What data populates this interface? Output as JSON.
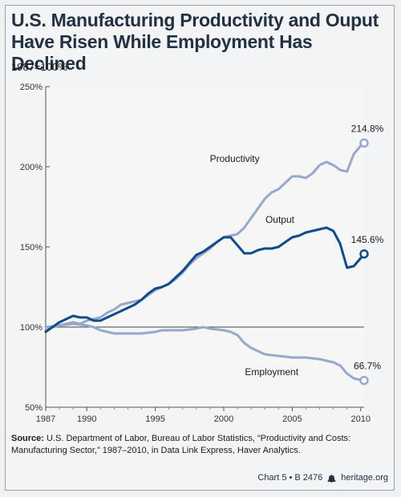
{
  "title_line1": "U.S. Manufacturing Productivity and Ouput",
  "title_line2": "Have Risen While Employment Has Declined",
  "subtitle": "1987=100%",
  "source_label": "Source:",
  "source_text": "U.S. Department of Labor, Bureau of Labor Statistics, “Productivity and Costs: Manufacturing Sector,” 1987–2010, in Data Link Express, Haver Analytics.",
  "footer_chart": "Chart 5 • B 2476",
  "footer_site": "heritage.org",
  "colors": {
    "productivity": "#96a9cd",
    "output": "#0f4c8c",
    "employment": "#96a9cd",
    "baseline": "#444444"
  },
  "chart_data": {
    "type": "line",
    "xlim": [
      1987,
      2010.25
    ],
    "ylim": [
      50,
      250
    ],
    "x_ticks": [
      1987,
      1990,
      1995,
      2000,
      2005,
      2010
    ],
    "y_ticks": [
      {
        "value": 50,
        "label": "50%"
      },
      {
        "value": 100,
        "label": "100%"
      },
      {
        "value": 150,
        "label": "150%"
      },
      {
        "value": 200,
        "label": "200%"
      },
      {
        "value": 250,
        "label": "250%"
      }
    ],
    "baseline": 100,
    "series": [
      {
        "name": "Productivity",
        "end_label": "214.8%",
        "points": [
          [
            1987,
            98
          ],
          [
            1987.5,
            100
          ],
          [
            1988,
            101
          ],
          [
            1988.5,
            102
          ],
          [
            1989,
            103
          ],
          [
            1989.5,
            102
          ],
          [
            1990,
            104
          ],
          [
            1990.5,
            105
          ],
          [
            1991,
            106
          ],
          [
            1991.5,
            109
          ],
          [
            1992,
            111
          ],
          [
            1992.5,
            114
          ],
          [
            1993,
            115
          ],
          [
            1993.5,
            116
          ],
          [
            1994,
            117
          ],
          [
            1994.5,
            120
          ],
          [
            1995,
            123
          ],
          [
            1995.5,
            125
          ],
          [
            1996,
            127
          ],
          [
            1996.5,
            130
          ],
          [
            1997,
            134
          ],
          [
            1997.5,
            139
          ],
          [
            1998,
            143
          ],
          [
            1998.5,
            146
          ],
          [
            1999,
            149
          ],
          [
            1999.5,
            153
          ],
          [
            2000,
            156
          ],
          [
            2000.5,
            157
          ],
          [
            2001,
            158
          ],
          [
            2001.5,
            162
          ],
          [
            2002,
            168
          ],
          [
            2002.5,
            174
          ],
          [
            2003,
            180
          ],
          [
            2003.5,
            184
          ],
          [
            2004,
            186
          ],
          [
            2004.5,
            190
          ],
          [
            2005,
            194
          ],
          [
            2005.5,
            194
          ],
          [
            2006,
            193
          ],
          [
            2006.5,
            196
          ],
          [
            2007,
            201
          ],
          [
            2007.5,
            203
          ],
          [
            2008,
            201
          ],
          [
            2008.5,
            198
          ],
          [
            2009,
            197
          ],
          [
            2009.5,
            208
          ],
          [
            2010,
            213
          ],
          [
            2010.25,
            214.8
          ]
        ]
      },
      {
        "name": "Output",
        "end_label": "145.6%",
        "points": [
          [
            1987,
            97
          ],
          [
            1987.5,
            100
          ],
          [
            1988,
            103
          ],
          [
            1988.5,
            105
          ],
          [
            1989,
            107
          ],
          [
            1989.5,
            106
          ],
          [
            1990,
            106
          ],
          [
            1990.5,
            104
          ],
          [
            1991,
            104
          ],
          [
            1991.5,
            106
          ],
          [
            1992,
            108
          ],
          [
            1992.5,
            110
          ],
          [
            1993,
            112
          ],
          [
            1993.5,
            114
          ],
          [
            1994,
            117
          ],
          [
            1994.5,
            121
          ],
          [
            1995,
            124
          ],
          [
            1995.5,
            125
          ],
          [
            1996,
            127
          ],
          [
            1996.5,
            131
          ],
          [
            1997,
            135
          ],
          [
            1997.5,
            140
          ],
          [
            1998,
            145
          ],
          [
            1998.5,
            147
          ],
          [
            1999,
            150
          ],
          [
            1999.5,
            153
          ],
          [
            2000,
            156
          ],
          [
            2000.5,
            156
          ],
          [
            2001,
            151
          ],
          [
            2001.5,
            146
          ],
          [
            2002,
            146
          ],
          [
            2002.5,
            148
          ],
          [
            2003,
            149
          ],
          [
            2003.5,
            149
          ],
          [
            2004,
            150
          ],
          [
            2004.5,
            153
          ],
          [
            2005,
            156
          ],
          [
            2005.5,
            157
          ],
          [
            2006,
            159
          ],
          [
            2006.5,
            160
          ],
          [
            2007,
            161
          ],
          [
            2007.5,
            162
          ],
          [
            2008,
            160
          ],
          [
            2008.5,
            152
          ],
          [
            2009,
            137
          ],
          [
            2009.5,
            138
          ],
          [
            2010,
            143
          ],
          [
            2010.25,
            145.6
          ]
        ]
      },
      {
        "name": "Employment",
        "end_label": "66.7%",
        "points": [
          [
            1987,
            100
          ],
          [
            1988,
            101
          ],
          [
            1989,
            102
          ],
          [
            1990,
            101
          ],
          [
            1990.5,
            100
          ],
          [
            1991,
            98
          ],
          [
            1991.5,
            97
          ],
          [
            1992,
            96
          ],
          [
            1993,
            96
          ],
          [
            1994,
            96
          ],
          [
            1995,
            97
          ],
          [
            1995.5,
            98
          ],
          [
            1996,
            98
          ],
          [
            1997,
            98
          ],
          [
            1998,
            99
          ],
          [
            1998.5,
            100
          ],
          [
            1999,
            99
          ],
          [
            2000,
            98
          ],
          [
            2000.5,
            97
          ],
          [
            2001,
            95
          ],
          [
            2001.5,
            90
          ],
          [
            2002,
            87
          ],
          [
            2002.5,
            85
          ],
          [
            2003,
            83
          ],
          [
            2004,
            82
          ],
          [
            2005,
            81
          ],
          [
            2006,
            81
          ],
          [
            2007,
            80
          ],
          [
            2008,
            78
          ],
          [
            2008.5,
            76
          ],
          [
            2009,
            71
          ],
          [
            2009.5,
            68
          ],
          [
            2010,
            67
          ],
          [
            2010.25,
            66.7
          ]
        ]
      }
    ]
  }
}
